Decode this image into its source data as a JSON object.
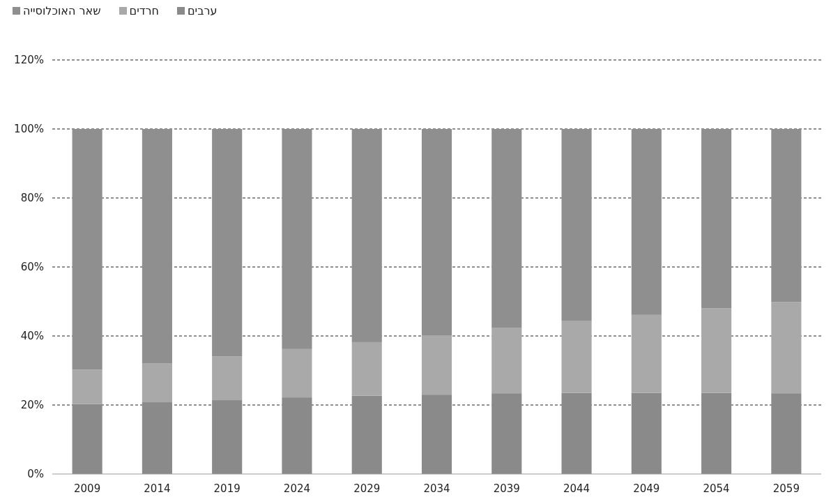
{
  "chart_data": {
    "type": "bar",
    "stacked": true,
    "categories": [
      "2009",
      "2014",
      "2019",
      "2024",
      "2029",
      "2034",
      "2039",
      "2044",
      "2049",
      "2054",
      "2059"
    ],
    "series": [
      {
        "name": "ערבים",
        "color": "#8a8a8a",
        "values": [
          20.3,
          20.8,
          21.4,
          22.2,
          22.7,
          23.0,
          23.4,
          23.5,
          23.5,
          23.5,
          23.4
        ]
      },
      {
        "name": "חרדים",
        "color": "#a9a9a9",
        "values": [
          9.9,
          11.3,
          12.7,
          14.0,
          15.5,
          17.2,
          18.9,
          20.8,
          22.6,
          24.5,
          26.4
        ]
      },
      {
        "name": "שאר האוכלוסייה",
        "color": "#8f8f8f",
        "values": [
          69.8,
          67.9,
          65.9,
          63.8,
          61.8,
          59.8,
          57.7,
          55.7,
          53.9,
          52.0,
          50.2
        ]
      }
    ],
    "ylim": [
      0,
      120
    ],
    "yticks": [
      {
        "value": 0,
        "label": "0%"
      },
      {
        "value": 20,
        "label": "20%"
      },
      {
        "value": 40,
        "label": "40%"
      },
      {
        "value": 60,
        "label": "60%"
      },
      {
        "value": 80,
        "label": "80%"
      },
      {
        "value": 100,
        "label": "100%"
      },
      {
        "value": 120,
        "label": "120%"
      }
    ],
    "grid": "y",
    "legend": "top left"
  }
}
